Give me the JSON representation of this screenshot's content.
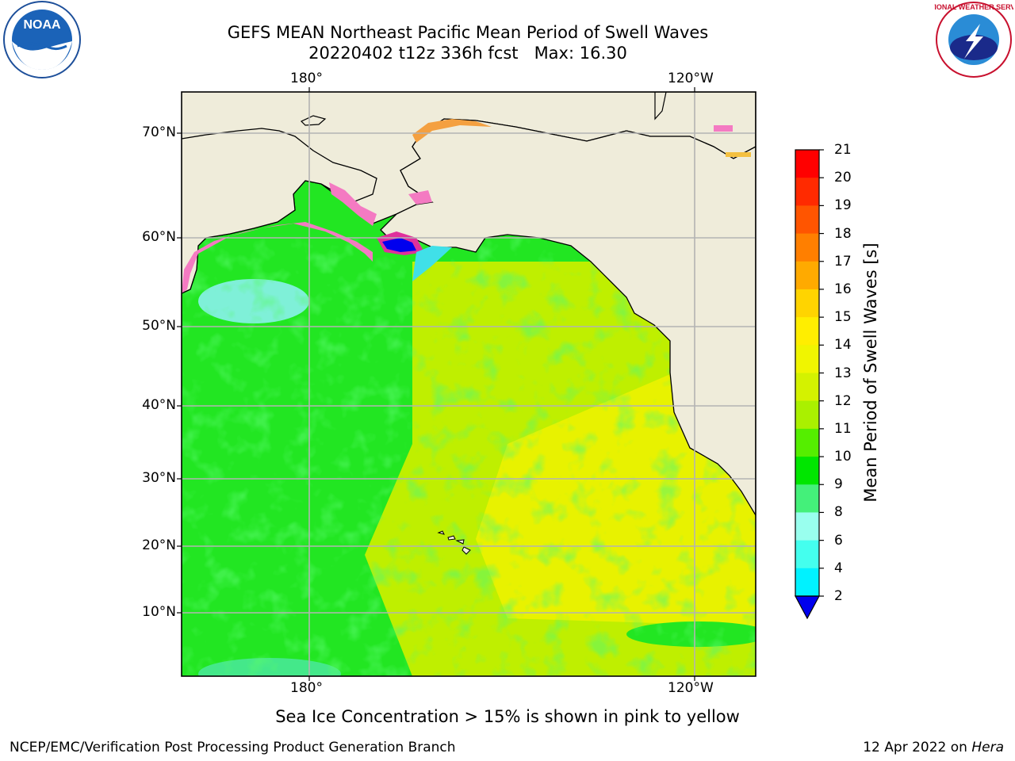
{
  "title": {
    "line1": "GEFS MEAN Northeast Pacific Mean Period of Swell Waves",
    "line2": "20220402 t12z 336h fcst   Max: 16.30"
  },
  "logos": {
    "left": "NOAA",
    "right": "NATIONAL WEATHER SERVICE"
  },
  "map": {
    "top_lon_labels": [
      "180°",
      "120°W"
    ],
    "bottom_lon_labels": [
      "180°",
      "120°W"
    ],
    "lat_labels": [
      "70°N",
      "60°N",
      "50°N",
      "40°N",
      "30°N",
      "20°N",
      "10°N"
    ],
    "colors": {
      "land": "#efecda",
      "ocean_green": "#22e622",
      "ocean_yellowgreen": "#bfef00",
      "ocean_yellow": "#e8f200",
      "ice_pink": "#f47ac2",
      "grid": "#b3b3b3"
    }
  },
  "colorbar": {
    "title": "Mean Period of Swell Waves [s]",
    "ticks": [
      "21",
      "20",
      "19",
      "18",
      "17",
      "16",
      "15",
      "14",
      "13",
      "12",
      "11",
      "10",
      "9",
      "8",
      "6",
      "4",
      "2"
    ],
    "colors": [
      "#ff0000",
      "#ff2a00",
      "#ff5500",
      "#ff7f00",
      "#ffaa00",
      "#ffd400",
      "#ffee00",
      "#f0f500",
      "#d4f200",
      "#aaf000",
      "#55ee00",
      "#00e600",
      "#44f07a",
      "#99ffee",
      "#44ffee",
      "#00f2ff",
      "#00d0ff",
      "#0077ff"
    ],
    "extend_color": "#0000ee"
  },
  "note": "Sea Ice Concentration > 15% is shown in pink to yellow",
  "footer": {
    "left": "NCEP/EMC/Verification Post Processing Product Generation Branch",
    "right_prefix": "12 Apr 2022 on ",
    "right_machine": "Hera"
  }
}
